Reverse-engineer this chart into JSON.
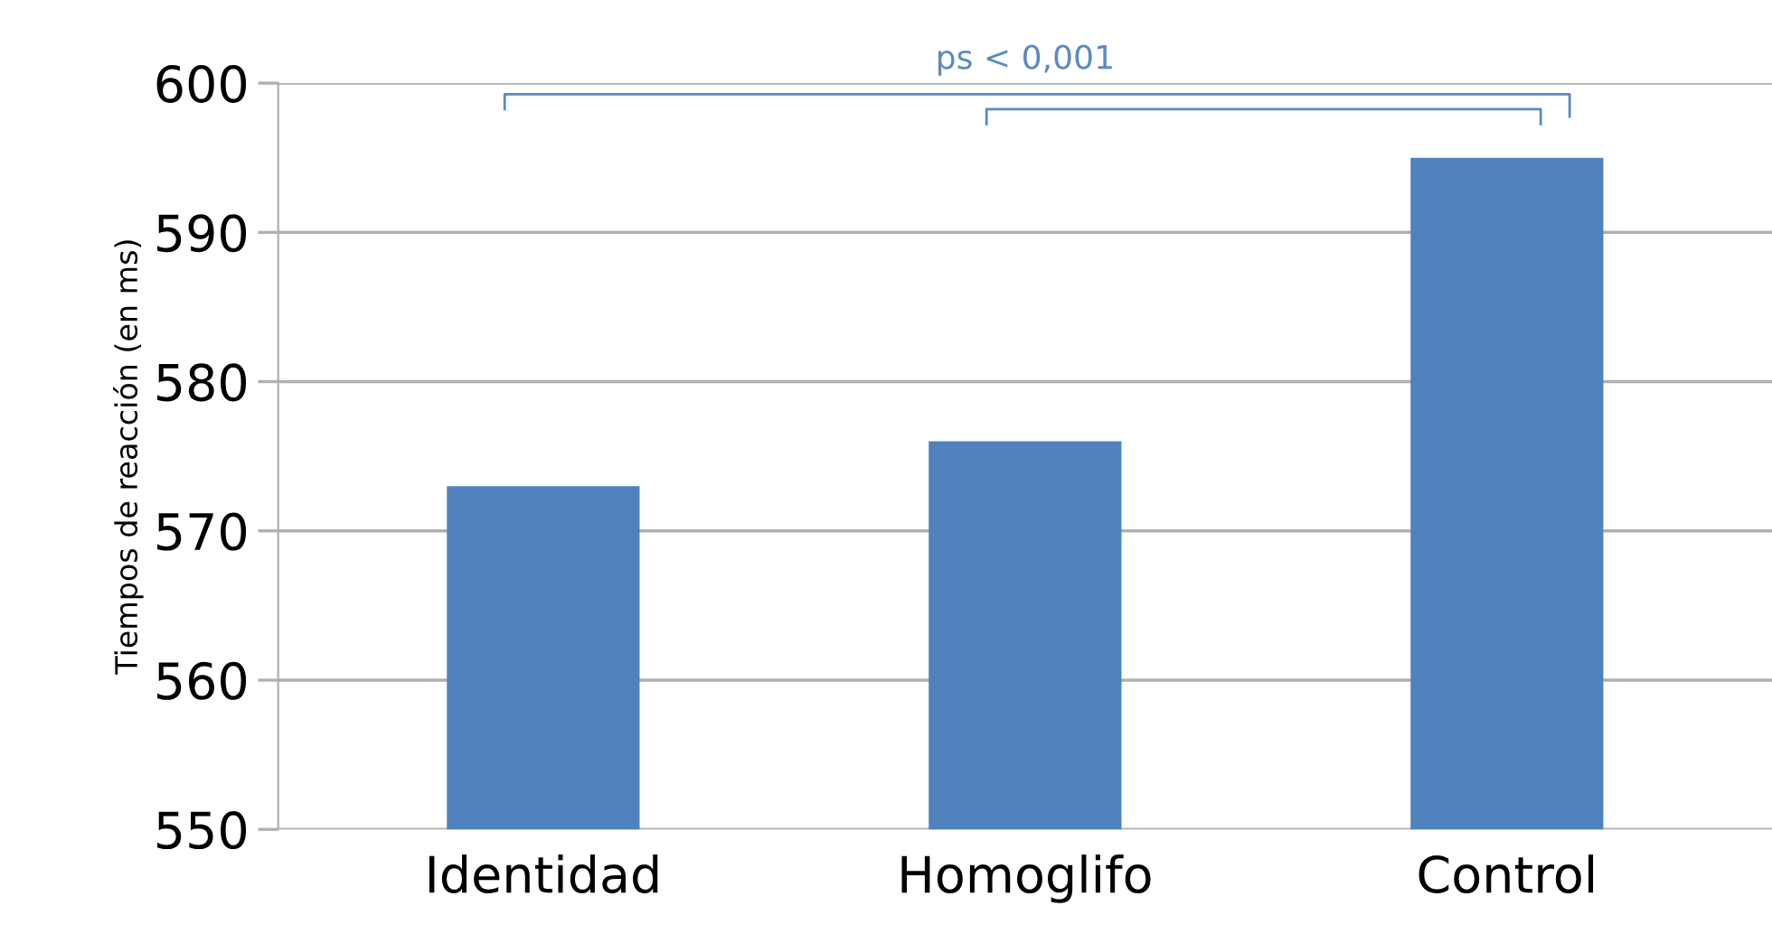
{
  "chart_data": {
    "type": "bar",
    "ylabel": "Tiempos de reacción (en ms)",
    "categories": [
      "Identidad",
      "Homoglifo",
      "Control"
    ],
    "values": [
      573,
      576,
      595
    ],
    "color": "#4f81bd",
    "ylim": [
      550,
      600
    ],
    "yticks": [
      550,
      560,
      570,
      580,
      590,
      600
    ],
    "grid": "y",
    "annotations": [
      "ps < 0,001"
    ]
  }
}
